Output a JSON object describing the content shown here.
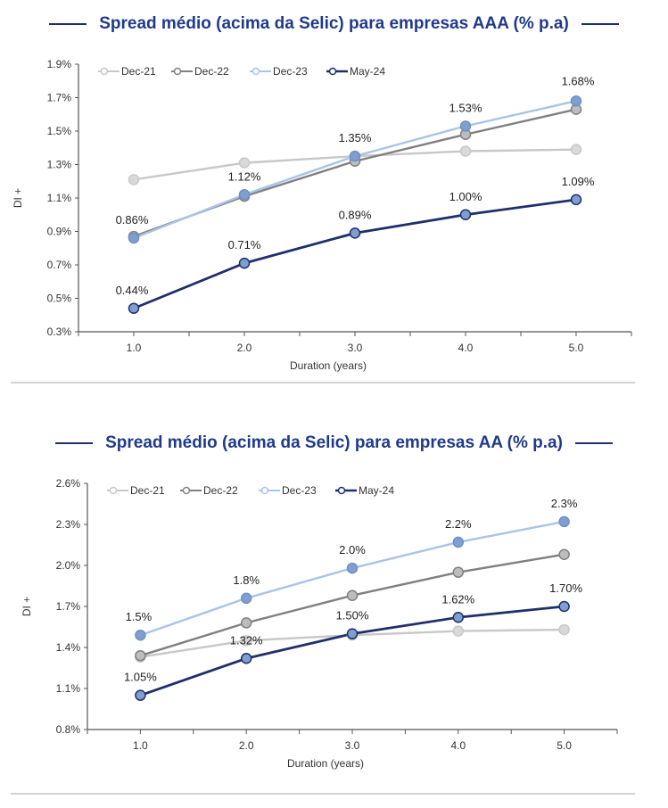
{
  "colors": {
    "title": "#1f3a8a",
    "dec21": "#c8c8c8",
    "dec22": "#808080",
    "dec23": "#a9c4e6",
    "may24": "#1f2f6b",
    "axis": "#555555"
  },
  "chart_data": [
    {
      "type": "line",
      "title": "Spread médio (acima da Selic) para empresas AAA (% p.a)",
      "xlabel": "Duration (years)",
      "ylabel": "DI +",
      "ylim": [
        0.3,
        1.9
      ],
      "yticks": [
        0.3,
        0.5,
        0.7,
        0.9,
        1.1,
        1.3,
        1.5,
        1.7,
        1.9
      ],
      "ytick_labels": [
        "0.3%",
        "0.5%",
        "0.7%",
        "0.9%",
        "1.1%",
        "1.3%",
        "1.5%",
        "1.7%",
        "1.9%"
      ],
      "x": [
        1.0,
        2.0,
        3.0,
        4.0,
        5.0
      ],
      "xtick_labels": [
        "1.0",
        "2.0",
        "3.0",
        "4.0",
        "5.0"
      ],
      "legend_position": "top-left",
      "series": [
        {
          "name": "Dec-21",
          "color": "#c8c8c8",
          "fill": "#d9d9d9",
          "values": [
            1.21,
            1.31,
            1.35,
            1.38,
            1.39
          ],
          "labels": []
        },
        {
          "name": "Dec-22",
          "color": "#808080",
          "fill": "#bdbdbd",
          "values": [
            0.87,
            1.11,
            1.32,
            1.48,
            1.63
          ],
          "labels": []
        },
        {
          "name": "Dec-23",
          "color": "#a9c4e6",
          "fill": "#7f9fd0",
          "values": [
            0.86,
            1.12,
            1.35,
            1.53,
            1.68
          ],
          "labels": [
            "0.86%",
            "1.12%",
            "1.35%",
            "1.53%",
            "1.68%"
          ]
        },
        {
          "name": "May-24",
          "color": "#1f2f6b",
          "fill": "#7f9fd0",
          "values": [
            0.44,
            0.71,
            0.89,
            1.0,
            1.09
          ],
          "labels": [
            "0.44%",
            "0.71%",
            "0.89%",
            "1.00%",
            "1.09%"
          ]
        }
      ]
    },
    {
      "type": "line",
      "title": "Spread médio (acima da Selic) para empresas AA (% p.a)",
      "xlabel": "Duration (years)",
      "ylabel": "DI +",
      "ylim": [
        0.8,
        2.6
      ],
      "yticks": [
        0.8,
        1.1,
        1.4,
        1.7,
        2.0,
        2.3,
        2.6
      ],
      "ytick_labels": [
        "0.8%",
        "1.1%",
        "1.4%",
        "1.7%",
        "2.0%",
        "2.3%",
        "2.6%"
      ],
      "x": [
        1.0,
        2.0,
        3.0,
        4.0,
        5.0
      ],
      "xtick_labels": [
        "1.0",
        "2.0",
        "3.0",
        "4.0",
        "5.0"
      ],
      "legend_position": "top-left",
      "series": [
        {
          "name": "Dec-21",
          "color": "#c8c8c8",
          "fill": "#d9d9d9",
          "values": [
            1.33,
            1.45,
            1.49,
            1.52,
            1.53
          ],
          "labels": []
        },
        {
          "name": "Dec-22",
          "color": "#808080",
          "fill": "#bdbdbd",
          "values": [
            1.34,
            1.58,
            1.78,
            1.95,
            2.08
          ],
          "labels": []
        },
        {
          "name": "Dec-23",
          "color": "#a9c4e6",
          "fill": "#7f9fd0",
          "values": [
            1.49,
            1.76,
            1.98,
            2.17,
            2.32
          ],
          "labels": [
            "1.5%",
            "1.8%",
            "2.0%",
            "2.2%",
            "2.3%"
          ]
        },
        {
          "name": "May-24",
          "color": "#1f2f6b",
          "fill": "#7f9fd0",
          "values": [
            1.05,
            1.32,
            1.5,
            1.62,
            1.7
          ],
          "labels": [
            "1.05%",
            "1.32%",
            "1.50%",
            "1.62%",
            "1.70%"
          ]
        }
      ]
    }
  ]
}
